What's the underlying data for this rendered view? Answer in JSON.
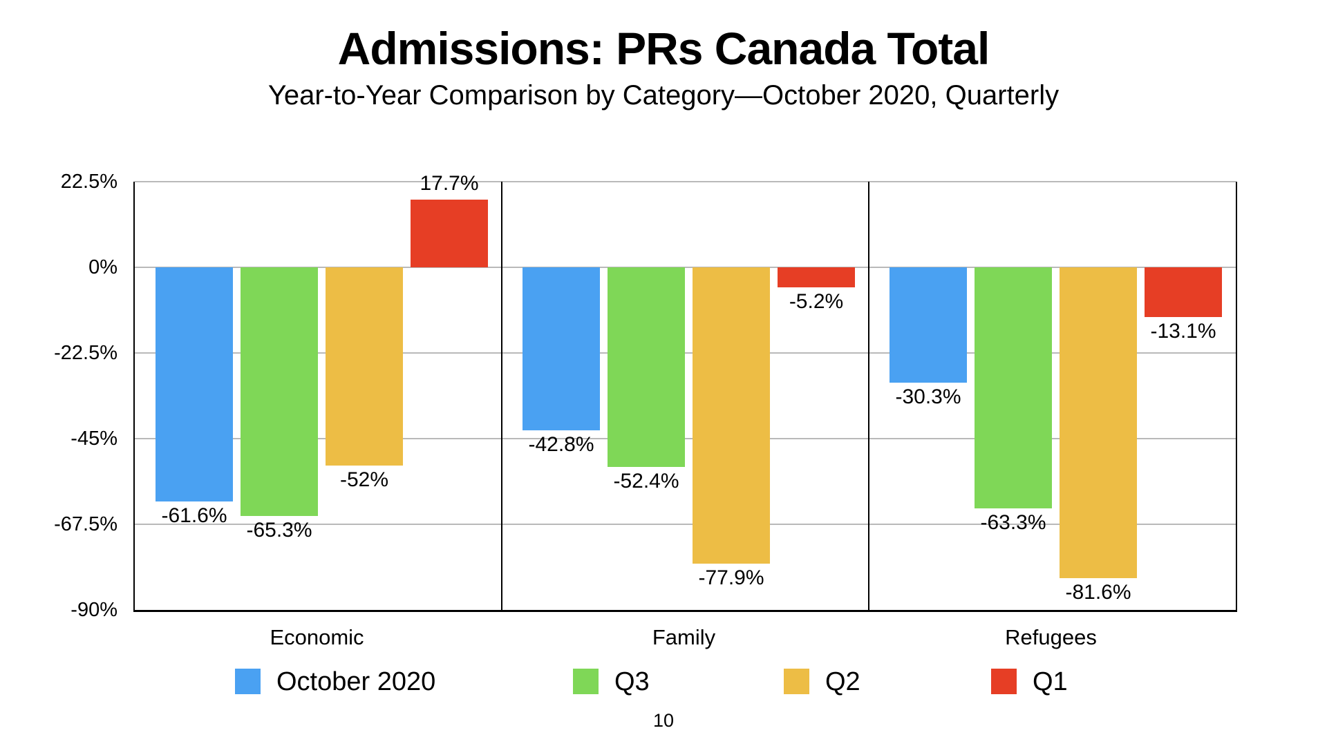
{
  "title": "Admissions: PRs Canada Total",
  "subtitle": "Year-to-Year Comparison by Category—October 2020, Quarterly",
  "page_number": "10",
  "colors": {
    "blue": "#4AA1F2",
    "green": "#7FD757",
    "yellow": "#EDBD45",
    "red": "#E63E25",
    "gridline": "#B9B9B9",
    "axis": "#000000"
  },
  "chart_data": {
    "type": "bar",
    "title": "Admissions: PRs Canada Total",
    "subtitle": "Year-to-Year Comparison by Category—October 2020, Quarterly",
    "categories": [
      "Economic",
      "Family",
      "Refugees"
    ],
    "series": [
      {
        "name": "October 2020",
        "color": "#4AA1F2",
        "values": [
          -61.6,
          -42.8,
          -30.3
        ],
        "labels": [
          "-61.6%",
          "-42.8%",
          "-30.3%"
        ]
      },
      {
        "name": "Q3",
        "color": "#7FD757",
        "values": [
          -65.3,
          -52.4,
          -63.3
        ],
        "labels": [
          "-65.3%",
          "-52.4%",
          "-63.3%"
        ]
      },
      {
        "name": "Q2",
        "color": "#EDBD45",
        "values": [
          -52,
          -77.9,
          -81.6
        ],
        "labels": [
          "-52%",
          "-77.9%",
          "-81.6%"
        ]
      },
      {
        "name": "Q1",
        "color": "#E63E25",
        "values": [
          17.7,
          -5.2,
          -13.1
        ],
        "labels": [
          "17.7%",
          "-5.2%",
          "-13.1%"
        ]
      }
    ],
    "y_axis": {
      "tick_labels": [
        "22.5%",
        "0%",
        "-22.5%",
        "-45%",
        "-67.5%",
        "-90%"
      ],
      "tick_values": [
        22.5,
        0,
        -22.5,
        -45,
        -67.5,
        -90
      ],
      "max": 22.5,
      "min": -90,
      "unit": "%"
    },
    "grid": true,
    "legend_position": "bottom"
  }
}
